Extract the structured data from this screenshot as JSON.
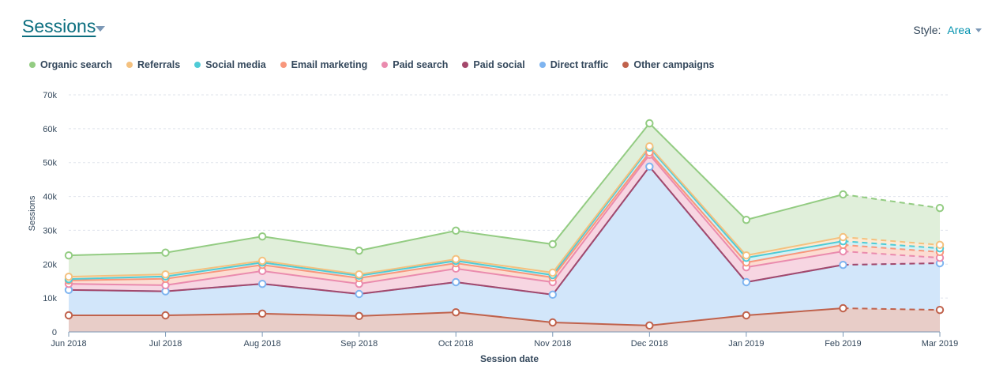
{
  "header": {
    "title": "Sessions",
    "style_label": "Style:",
    "style_value": "Area"
  },
  "chart_data": {
    "type": "area",
    "stacked": true,
    "title": "Sessions",
    "xlabel": "Session date",
    "ylabel": "Sessions",
    "ylim": [
      0,
      70000
    ],
    "yticks": [
      0,
      10000,
      20000,
      30000,
      40000,
      50000,
      60000,
      70000
    ],
    "ytick_labels": [
      "0",
      "10k",
      "20k",
      "30k",
      "40k",
      "50k",
      "60k",
      "70k"
    ],
    "grid": true,
    "legend_position": "top-left",
    "categories": [
      "Jun 2018",
      "Jul 2018",
      "Aug 2018",
      "Sep 2018",
      "Oct 2018",
      "Nov 2018",
      "Dec 2018",
      "Jan 2019",
      "Feb 2019",
      "Mar 2019"
    ],
    "projected_from_index": 8,
    "series": [
      {
        "name": "Other campaigns",
        "color": "#c0624c",
        "fill": "#e8cdc8",
        "values": [
          4900,
          4900,
          5400,
          4700,
          5800,
          2800,
          1900,
          4900,
          7000,
          6500
        ]
      },
      {
        "name": "Direct traffic",
        "color": "#7eb4f0",
        "fill": "#d2e6fa",
        "values": [
          7500,
          7100,
          8800,
          6500,
          8900,
          8200,
          46900,
          9800,
          12800,
          13800
        ]
      },
      {
        "name": "Paid social",
        "color": "#a4486b",
        "fill": "#f3d0dd",
        "values": [
          0,
          0,
          0,
          0,
          0,
          0,
          0,
          0,
          0,
          0
        ]
      },
      {
        "name": "Paid search",
        "color": "#ea8bae",
        "fill": "#f7d6e2",
        "values": [
          1800,
          1800,
          3800,
          3000,
          4000,
          3700,
          3500,
          4400,
          4000,
          1600
        ]
      },
      {
        "name": "Email marketing",
        "color": "#f8977c",
        "fill": "#fcdcd2",
        "values": [
          1000,
          1900,
          1800,
          1700,
          1600,
          1400,
          700,
          1400,
          1900,
          1700
        ]
      },
      {
        "name": "Social media",
        "color": "#4fcbd6",
        "fill": "#d4f1f4",
        "values": [
          400,
          700,
          700,
          700,
          700,
          700,
          1400,
          1400,
          1100,
          1100
        ]
      },
      {
        "name": "Referrals",
        "color": "#f4c17f",
        "fill": "#fcebd4",
        "values": [
          700,
          600,
          500,
          400,
          500,
          700,
          400,
          700,
          1200,
          1000
        ]
      },
      {
        "name": "Organic search",
        "color": "#93cc82",
        "fill": "#e0efda",
        "values": [
          6300,
          6400,
          7200,
          7000,
          8400,
          8400,
          6800,
          10500,
          12600,
          10900
        ]
      }
    ]
  },
  "legend": [
    {
      "label": "Organic search",
      "color": "#93cc82"
    },
    {
      "label": "Referrals",
      "color": "#f4c17f"
    },
    {
      "label": "Social media",
      "color": "#4fcbd6"
    },
    {
      "label": "Email marketing",
      "color": "#f8977c"
    },
    {
      "label": "Paid search",
      "color": "#ea8bae"
    },
    {
      "label": "Paid social",
      "color": "#a4486b"
    },
    {
      "label": "Direct traffic",
      "color": "#7eb4f0"
    },
    {
      "label": "Other campaigns",
      "color": "#c0624c"
    }
  ]
}
